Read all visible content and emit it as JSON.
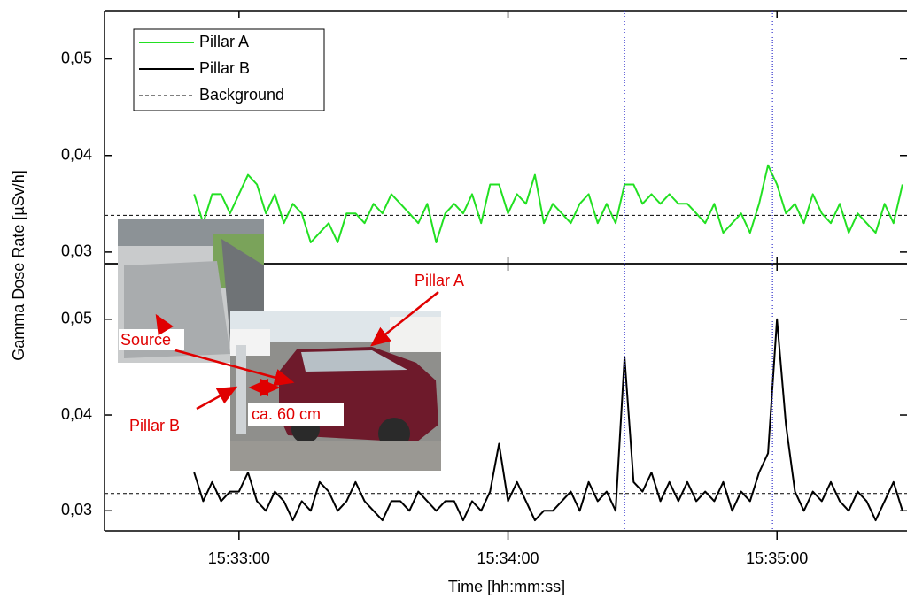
{
  "chart_data": [
    {
      "type": "line",
      "y_label": "Gamma Dose Rate [µSv/h]",
      "xlim": [
        "15:32:30",
        "15:35:29"
      ],
      "ylim": [
        0.0288,
        0.055
      ],
      "yticks": [
        {
          "value": 0.03,
          "label": "0,03"
        },
        {
          "value": 0.04,
          "label": "0,04"
        },
        {
          "value": 0.05,
          "label": "0,05"
        }
      ],
      "reference_line": {
        "name": "Background",
        "value": 0.0338
      },
      "x": [
        "15:32:50",
        "15:32:52",
        "15:32:54",
        "15:32:56",
        "15:32:58",
        "15:33:00",
        "15:33:02",
        "15:33:04",
        "15:33:06",
        "15:33:08",
        "15:33:10",
        "15:33:12",
        "15:33:14",
        "15:33:16",
        "15:33:18",
        "15:33:20",
        "15:33:22",
        "15:33:24",
        "15:33:26",
        "15:33:28",
        "15:33:30",
        "15:33:32",
        "15:33:34",
        "15:33:36",
        "15:33:38",
        "15:33:40",
        "15:33:42",
        "15:33:44",
        "15:33:46",
        "15:33:48",
        "15:33:50",
        "15:33:52",
        "15:33:54",
        "15:33:56",
        "15:33:58",
        "15:34:00",
        "15:34:02",
        "15:34:04",
        "15:34:06",
        "15:34:08",
        "15:34:10",
        "15:34:12",
        "15:34:14",
        "15:34:16",
        "15:34:18",
        "15:34:20",
        "15:34:22",
        "15:34:24",
        "15:34:26",
        "15:34:28",
        "15:34:30",
        "15:34:32",
        "15:34:34",
        "15:34:36",
        "15:34:38",
        "15:34:40",
        "15:34:42",
        "15:34:44",
        "15:34:46",
        "15:34:48",
        "15:34:50",
        "15:34:52",
        "15:34:54",
        "15:34:56",
        "15:34:58",
        "15:35:00",
        "15:35:02",
        "15:35:04",
        "15:35:06",
        "15:35:08",
        "15:35:10",
        "15:35:12",
        "15:35:14",
        "15:35:16",
        "15:35:18",
        "15:35:20",
        "15:35:22",
        "15:35:24",
        "15:35:26",
        "15:35:28"
      ],
      "series": [
        {
          "name": "Pillar A",
          "color": "#22e022",
          "values": [
            0.036,
            0.033,
            0.036,
            0.036,
            0.034,
            0.036,
            0.038,
            0.037,
            0.034,
            0.036,
            0.033,
            0.035,
            0.034,
            0.031,
            0.032,
            0.033,
            0.031,
            0.034,
            0.034,
            0.033,
            0.035,
            0.034,
            0.036,
            0.035,
            0.034,
            0.033,
            0.035,
            0.031,
            0.034,
            0.035,
            0.034,
            0.036,
            0.033,
            0.037,
            0.037,
            0.034,
            0.036,
            0.035,
            0.038,
            0.033,
            0.035,
            0.034,
            0.033,
            0.035,
            0.036,
            0.033,
            0.035,
            0.033,
            0.037,
            0.037,
            0.035,
            0.036,
            0.035,
            0.036,
            0.035,
            0.035,
            0.034,
            0.033,
            0.035,
            0.032,
            0.033,
            0.034,
            0.032,
            0.035,
            0.039,
            0.037,
            0.034,
            0.035,
            0.033,
            0.036,
            0.034,
            0.033,
            0.035,
            0.032,
            0.034,
            0.033,
            0.032,
            0.035,
            0.033,
            0.037
          ]
        }
      ]
    },
    {
      "type": "line",
      "x_label": "Time [hh:mm:ss]",
      "xlim": [
        "15:32:30",
        "15:35:29"
      ],
      "xticks": [
        "15:33:00",
        "15:34:00",
        "15:35:00"
      ],
      "ylim": [
        0.0279,
        0.0558
      ],
      "yticks": [
        {
          "value": 0.03,
          "label": "0,03"
        },
        {
          "value": 0.04,
          "label": "0,04"
        },
        {
          "value": 0.05,
          "label": "0,05"
        }
      ],
      "reference_line": {
        "value": 0.0318
      },
      "markers": [
        "15:34:26",
        "15:34:59"
      ],
      "annotations": [
        "Pillar A",
        "Source",
        "Pillar B",
        "ca. 60 cm"
      ],
      "x": [
        "15:32:50",
        "15:32:52",
        "15:32:54",
        "15:32:56",
        "15:32:58",
        "15:33:00",
        "15:33:02",
        "15:33:04",
        "15:33:06",
        "15:33:08",
        "15:33:10",
        "15:33:12",
        "15:33:14",
        "15:33:16",
        "15:33:18",
        "15:33:20",
        "15:33:22",
        "15:33:24",
        "15:33:26",
        "15:33:28",
        "15:33:30",
        "15:33:32",
        "15:33:34",
        "15:33:36",
        "15:33:38",
        "15:33:40",
        "15:33:42",
        "15:33:44",
        "15:33:46",
        "15:33:48",
        "15:33:50",
        "15:33:52",
        "15:33:54",
        "15:33:56",
        "15:33:58",
        "15:34:00",
        "15:34:02",
        "15:34:04",
        "15:34:06",
        "15:34:08",
        "15:34:10",
        "15:34:12",
        "15:34:14",
        "15:34:16",
        "15:34:18",
        "15:34:20",
        "15:34:22",
        "15:34:24",
        "15:34:26",
        "15:34:28",
        "15:34:30",
        "15:34:32",
        "15:34:34",
        "15:34:36",
        "15:34:38",
        "15:34:40",
        "15:34:42",
        "15:34:44",
        "15:34:46",
        "15:34:48",
        "15:34:50",
        "15:34:52",
        "15:34:54",
        "15:34:56",
        "15:34:58",
        "15:35:00",
        "15:35:02",
        "15:35:04",
        "15:35:06",
        "15:35:08",
        "15:35:10",
        "15:35:12",
        "15:35:14",
        "15:35:16",
        "15:35:18",
        "15:35:20",
        "15:35:22",
        "15:35:24",
        "15:35:26",
        "15:35:28"
      ],
      "series": [
        {
          "name": "Pillar B",
          "color": "#000000",
          "values": [
            0.034,
            0.031,
            0.033,
            0.031,
            0.032,
            0.032,
            0.034,
            0.031,
            0.03,
            0.032,
            0.031,
            0.029,
            0.031,
            0.03,
            0.033,
            0.032,
            0.03,
            0.031,
            0.033,
            0.031,
            0.03,
            0.029,
            0.031,
            0.031,
            0.03,
            0.032,
            0.031,
            0.03,
            0.031,
            0.031,
            0.029,
            0.031,
            0.03,
            0.032,
            0.037,
            0.031,
            0.033,
            0.031,
            0.029,
            0.03,
            0.03,
            0.031,
            0.032,
            0.03,
            0.033,
            0.031,
            0.032,
            0.03,
            0.046,
            0.033,
            0.032,
            0.034,
            0.031,
            0.033,
            0.031,
            0.033,
            0.031,
            0.032,
            0.031,
            0.033,
            0.03,
            0.032,
            0.031,
            0.034,
            0.036,
            0.05,
            0.039,
            0.032,
            0.03,
            0.032,
            0.031,
            0.033,
            0.031,
            0.03,
            0.032,
            0.031,
            0.029,
            0.031,
            0.033,
            0.03
          ]
        }
      ]
    }
  ]
}
